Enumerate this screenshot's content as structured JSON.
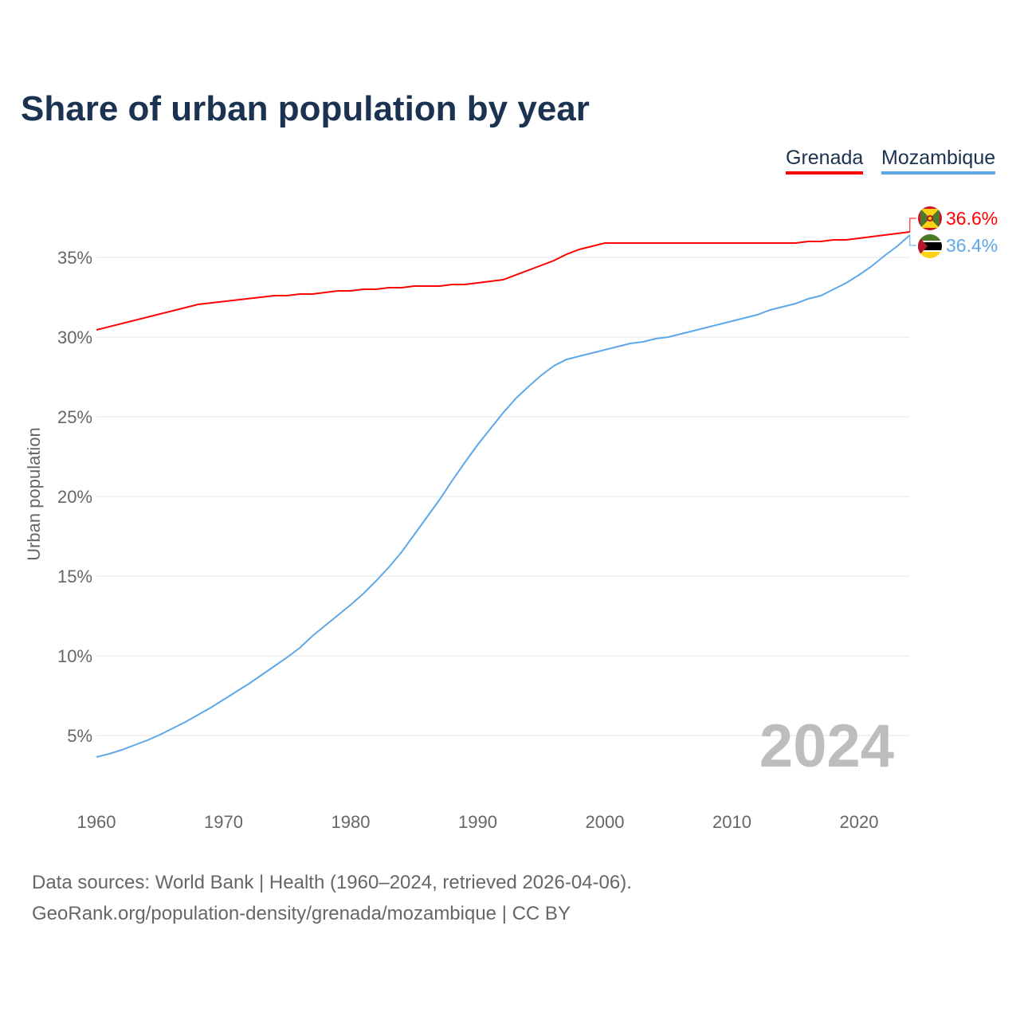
{
  "chart_data": {
    "type": "line",
    "title": "Share of urban population by year",
    "xlabel": "",
    "ylabel": "Urban population",
    "xlim": [
      1960,
      2024
    ],
    "ylim": [
      0,
      38
    ],
    "x_ticks": [
      1960,
      1970,
      1980,
      1990,
      2000,
      2010,
      2020
    ],
    "x_tick_labels": [
      "1960",
      "1970",
      "1980",
      "1990",
      "2000",
      "2010",
      "2020"
    ],
    "y_ticks": [
      5,
      10,
      15,
      20,
      25,
      30,
      35
    ],
    "y_tick_labels": [
      "5%",
      "10%",
      "15%",
      "20%",
      "25%",
      "30%",
      "35%"
    ],
    "grid": true,
    "legend_position": "top-right",
    "year_watermark": "2024",
    "series": [
      {
        "name": "Grenada",
        "color": "#ff0000",
        "end_label": "36.6%",
        "points": [
          [
            1960,
            30.45
          ],
          [
            1968,
            32.05
          ],
          [
            1974,
            32.6
          ],
          [
            1975,
            32.6
          ],
          [
            1976,
            32.7
          ],
          [
            1977,
            32.7
          ],
          [
            1979,
            32.9
          ],
          [
            1980,
            32.9
          ],
          [
            1981,
            33.0
          ],
          [
            1982,
            33.0
          ],
          [
            1983,
            33.1
          ],
          [
            1984,
            33.1
          ],
          [
            1985,
            33.2
          ],
          [
            1987,
            33.2
          ],
          [
            1988,
            33.3
          ],
          [
            1989,
            33.3
          ],
          [
            1992,
            33.6
          ],
          [
            1996,
            34.8
          ],
          [
            1997,
            35.2
          ],
          [
            1998,
            35.5
          ],
          [
            2000,
            35.9
          ],
          [
            2015,
            35.9
          ],
          [
            2016,
            36.0
          ],
          [
            2017,
            36.0
          ],
          [
            2018,
            36.1
          ],
          [
            2019,
            36.1
          ],
          [
            2024,
            36.6
          ]
        ]
      },
      {
        "name": "Mozambique",
        "color": "#5ea8e8",
        "end_label": "36.4%",
        "points": [
          [
            1960,
            3.65
          ],
          [
            1961,
            3.85
          ],
          [
            1962,
            4.1
          ],
          [
            1963,
            4.4
          ],
          [
            1964,
            4.7
          ],
          [
            1965,
            5.05
          ],
          [
            1966,
            5.45
          ],
          [
            1967,
            5.85
          ],
          [
            1968,
            6.3
          ],
          [
            1969,
            6.75
          ],
          [
            1970,
            7.25
          ],
          [
            1971,
            7.75
          ],
          [
            1972,
            8.25
          ],
          [
            1973,
            8.8
          ],
          [
            1974,
            9.35
          ],
          [
            1975,
            9.9
          ],
          [
            1976,
            10.5
          ],
          [
            1977,
            11.25
          ],
          [
            1978,
            11.9
          ],
          [
            1979,
            12.55
          ],
          [
            1980,
            13.2
          ],
          [
            1981,
            13.9
          ],
          [
            1982,
            14.7
          ],
          [
            1983,
            15.55
          ],
          [
            1984,
            16.5
          ],
          [
            1985,
            17.6
          ],
          [
            1986,
            18.7
          ],
          [
            1987,
            19.8
          ],
          [
            1988,
            21.0
          ],
          [
            1989,
            22.15
          ],
          [
            1990,
            23.25
          ],
          [
            1991,
            24.25
          ],
          [
            1992,
            25.25
          ],
          [
            1993,
            26.15
          ],
          [
            1994,
            26.9
          ],
          [
            1995,
            27.6
          ],
          [
            1996,
            28.2
          ],
          [
            1997,
            28.6
          ],
          [
            1998,
            28.8
          ],
          [
            1999,
            29.0
          ],
          [
            2000,
            29.2
          ],
          [
            2001,
            29.4
          ],
          [
            2002,
            29.6
          ],
          [
            2003,
            29.7
          ],
          [
            2004,
            29.9
          ],
          [
            2005,
            30.0
          ],
          [
            2006,
            30.2
          ],
          [
            2007,
            30.4
          ],
          [
            2008,
            30.6
          ],
          [
            2009,
            30.8
          ],
          [
            2010,
            31.0
          ],
          [
            2011,
            31.2
          ],
          [
            2012,
            31.4
          ],
          [
            2013,
            31.7
          ],
          [
            2014,
            31.9
          ],
          [
            2015,
            32.1
          ],
          [
            2016,
            32.4
          ],
          [
            2017,
            32.6
          ],
          [
            2018,
            33.0
          ],
          [
            2019,
            33.4
          ],
          [
            2020,
            33.9
          ],
          [
            2021,
            34.45
          ],
          [
            2022,
            35.1
          ],
          [
            2023,
            35.7
          ],
          [
            2024,
            36.4
          ]
        ]
      }
    ]
  },
  "source": {
    "line1": "Data sources: World Bank | Health (1960–2024, retrieved 2026-04-06).",
    "line2": "GeoRank.org/population-density/grenada/mozambique | CC BY"
  }
}
